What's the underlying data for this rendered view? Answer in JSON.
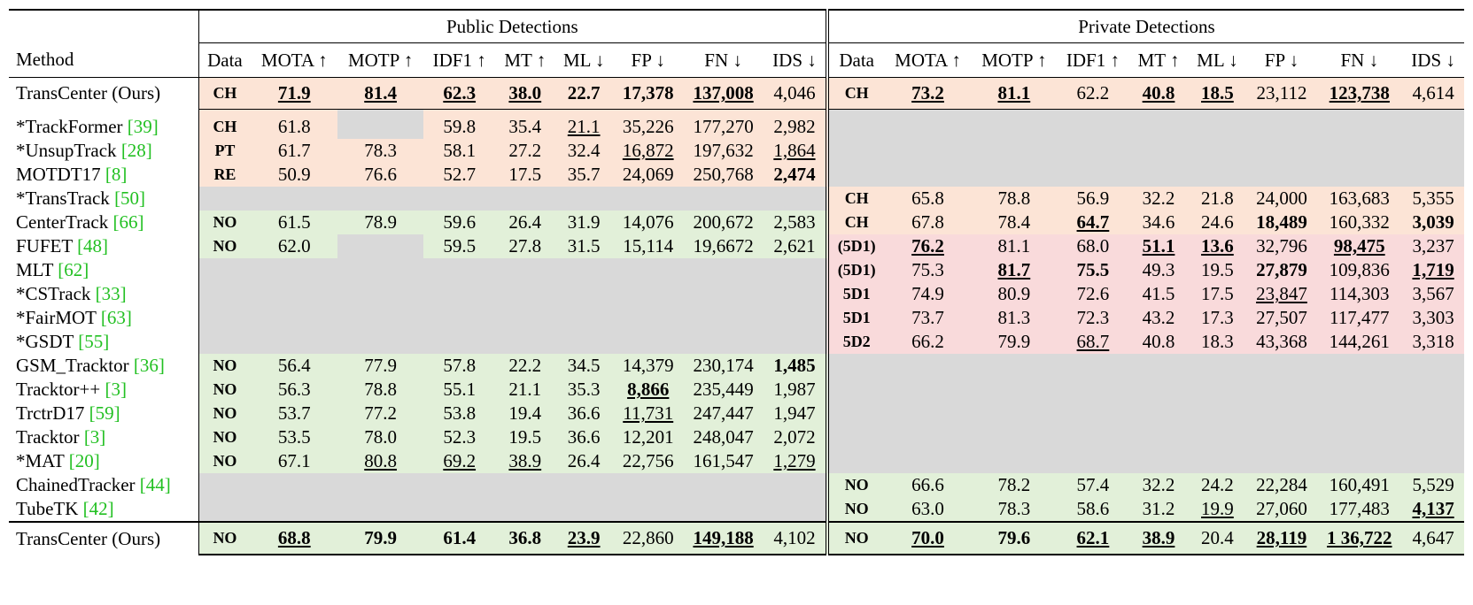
{
  "header": {
    "groups": [
      "Public Detections",
      "Private Detections"
    ],
    "method": "Method",
    "columns": [
      "Data",
      "MOTA ↑",
      "MOTP ↑",
      "IDF1 ↑",
      "MT ↑",
      "ML ↓",
      "FP ↓",
      "FN ↓",
      "IDS ↓"
    ]
  },
  "sections": [
    [
      {
        "method": "TransCenter (Ours)",
        "ref": null,
        "public": {
          "fill": "#fce4d6",
          "cells": [
            "CH",
            {
              "text": "71.9",
              "bold": true,
              "underline": true
            },
            {
              "text": "81.4",
              "bold": true,
              "underline": true
            },
            {
              "text": "62.3",
              "bold": true,
              "underline": true
            },
            {
              "text": "38.0",
              "bold": true,
              "underline": true
            },
            {
              "text": "22.7",
              "bold": true
            },
            {
              "text": "17,378",
              "bold": true
            },
            {
              "text": "137,008",
              "bold": true,
              "underline": true
            },
            "4,046"
          ]
        },
        "private": {
          "fill": "#fce4d6",
          "cells": [
            "CH",
            {
              "text": "73.2",
              "bold": true,
              "underline": true
            },
            {
              "text": "81.1",
              "bold": true,
              "underline": true
            },
            "62.2",
            {
              "text": "40.8",
              "bold": true,
              "underline": true
            },
            {
              "text": "18.5",
              "bold": true,
              "underline": true
            },
            "23,112",
            {
              "text": "123,738",
              "bold": true,
              "underline": true
            },
            "4,614"
          ]
        }
      }
    ],
    [
      {
        "method": "*TrackFormer",
        "ref": "[39]",
        "public": {
          "fill": "#fce4d6",
          "cells": [
            "CH",
            "61.8",
            null,
            "59.8",
            "35.4",
            {
              "text": "21.1",
              "underline": true
            },
            "35,226",
            "177,270",
            "2,982"
          ]
        },
        "private": null
      },
      {
        "method": "*UnsupTrack",
        "ref": "[28]",
        "public": {
          "fill": "#fce4d6",
          "cells": [
            "PT",
            "61.7",
            "78.3",
            "58.1",
            "27.2",
            "32.4",
            {
              "text": "16,872",
              "underline": true
            },
            "197,632",
            {
              "text": "1,864",
              "underline": true
            }
          ]
        },
        "private": null
      },
      {
        "method": "MOTDT17",
        "ref": "[8]",
        "public": {
          "fill": "#fce4d6",
          "cells": [
            "RE",
            "50.9",
            "76.6",
            "52.7",
            "17.5",
            "35.7",
            "24,069",
            "250,768",
            {
              "text": "2,474",
              "bold": true
            }
          ]
        },
        "private": null
      },
      {
        "method": "*TransTrack",
        "ref": "[50]",
        "public": null,
        "private": {
          "fill": "#fce4d6",
          "cells": [
            "CH",
            "65.8",
            "78.8",
            "56.9",
            "32.2",
            "21.8",
            "24,000",
            "163,683",
            "5,355"
          ]
        }
      },
      {
        "method": "CenterTrack",
        "ref": "[66]",
        "public": {
          "fill": "#e2f0d9",
          "cells": [
            "NO",
            "61.5",
            "78.9",
            "59.6",
            "26.4",
            "31.9",
            "14,076",
            "200,672",
            "2,583"
          ]
        },
        "private": {
          "fill": "#fce4d6",
          "cells": [
            "CH",
            "67.8",
            "78.4",
            {
              "text": "64.7",
              "bold": true,
              "underline": true
            },
            "34.6",
            "24.6",
            {
              "text": "18,489",
              "bold": true
            },
            "160,332",
            {
              "text": "3,039",
              "bold": true
            }
          ]
        }
      },
      {
        "method": "FUFET",
        "ref": "[48]",
        "public": {
          "fill": "#e2f0d9",
          "cells": [
            "NO",
            "62.0",
            null,
            "59.5",
            "27.8",
            "31.5",
            "15,114",
            "19,6672",
            "2,621"
          ]
        },
        "private": {
          "fill": "#f9dadb",
          "cells": [
            "(5D1)",
            {
              "text": "76.2",
              "bold": true,
              "underline": true
            },
            "81.1",
            "68.0",
            {
              "text": "51.1",
              "bold": true,
              "underline": true
            },
            {
              "text": "13.6",
              "bold": true,
              "underline": true
            },
            "32,796",
            {
              "text": "98,475",
              "bold": true,
              "underline": true
            },
            "3,237"
          ]
        }
      },
      {
        "method": "MLT",
        "ref": "[62]",
        "public": null,
        "private": {
          "fill": "#f9dadb",
          "cells": [
            "(5D1)",
            "75.3",
            {
              "text": "81.7",
              "bold": true,
              "underline": true
            },
            {
              "text": "75.5",
              "bold": true
            },
            "49.3",
            "19.5",
            {
              "text": "27,879",
              "bold": true
            },
            "109,836",
            {
              "text": "1,719",
              "bold": true,
              "underline": true
            }
          ]
        }
      },
      {
        "method": "*CSTrack",
        "ref": "[33]",
        "public": null,
        "private": {
          "fill": "#f9dadb",
          "cells": [
            "5D1",
            "74.9",
            "80.9",
            "72.6",
            "41.5",
            "17.5",
            {
              "text": "23,847",
              "underline": true
            },
            "114,303",
            "3,567"
          ]
        }
      },
      {
        "method": "*FairMOT",
        "ref": "[63]",
        "public": null,
        "private": {
          "fill": "#f9dadb",
          "cells": [
            "5D1",
            "73.7",
            "81.3",
            "72.3",
            "43.2",
            "17.3",
            "27,507",
            "117,477",
            "3,303"
          ]
        }
      },
      {
        "method": "*GSDT",
        "ref": "[55]",
        "public": null,
        "private": {
          "fill": "#f9dadb",
          "cells": [
            "5D2",
            "66.2",
            "79.9",
            {
              "text": "68.7",
              "underline": true
            },
            "40.8",
            "18.3",
            "43,368",
            "144,261",
            "3,318"
          ]
        }
      },
      {
        "method": "GSM_Tracktor",
        "ref": "[36]",
        "public": {
          "fill": "#e2f0d9",
          "cells": [
            "NO",
            "56.4",
            "77.9",
            "57.8",
            "22.2",
            "34.5",
            "14,379",
            "230,174",
            {
              "text": "1,485",
              "bold": true
            }
          ]
        },
        "private": null
      },
      {
        "method": "Tracktor++",
        "ref": "[3]",
        "public": {
          "fill": "#e2f0d9",
          "cells": [
            "NO",
            "56.3",
            "78.8",
            "55.1",
            "21.1",
            "35.3",
            {
              "text": "8,866",
              "bold": true,
              "underline": true
            },
            "235,449",
            "1,987"
          ]
        },
        "private": null
      },
      {
        "method": "TrctrD17",
        "ref": "[59]",
        "public": {
          "fill": "#e2f0d9",
          "cells": [
            "NO",
            "53.7",
            "77.2",
            "53.8",
            "19.4",
            "36.6",
            {
              "text": "11,731",
              "underline": true
            },
            "247,447",
            "1,947"
          ]
        },
        "private": null
      },
      {
        "method": "Tracktor",
        "ref": "[3]",
        "public": {
          "fill": "#e2f0d9",
          "cells": [
            "NO",
            "53.5",
            "78.0",
            "52.3",
            "19.5",
            "36.6",
            "12,201",
            "248,047",
            "2,072"
          ]
        },
        "private": null
      },
      {
        "method": "*MAT",
        "ref": "[20]",
        "public": {
          "fill": "#e2f0d9",
          "cells": [
            "NO",
            "67.1",
            {
              "text": "80.8",
              "underline": true
            },
            {
              "text": "69.2",
              "underline": true
            },
            {
              "text": "38.9",
              "underline": true
            },
            "26.4",
            "22,756",
            "161,547",
            {
              "text": "1,279",
              "underline": true
            }
          ]
        },
        "private": null
      },
      {
        "method": "ChainedTracker",
        "ref": "[44]",
        "public": null,
        "private": {
          "fill": "#e2f0d9",
          "cells": [
            "NO",
            "66.6",
            "78.2",
            "57.4",
            "32.2",
            "24.2",
            "22,284",
            "160,491",
            "5,529"
          ]
        }
      },
      {
        "method": "TubeTK",
        "ref": "[42]",
        "public": null,
        "private": {
          "fill": "#e2f0d9",
          "cells": [
            "NO",
            "63.0",
            "78.3",
            "58.6",
            "31.2",
            {
              "text": "19.9",
              "underline": true
            },
            "27,060",
            "177,483",
            {
              "text": "4,137",
              "bold": true,
              "underline": true
            }
          ]
        }
      }
    ],
    [
      {
        "method": "TransCenter (Ours)",
        "ref": null,
        "public": {
          "fill": "#e2f0d9",
          "cells": [
            "NO",
            {
              "text": "68.8",
              "bold": true,
              "underline": true
            },
            {
              "text": "79.9",
              "bold": true
            },
            {
              "text": "61.4",
              "bold": true
            },
            {
              "text": "36.8",
              "bold": true
            },
            {
              "text": "23.9",
              "bold": true,
              "underline": true
            },
            "22,860",
            {
              "text": "149,188",
              "bold": true,
              "underline": true
            },
            "4,102"
          ]
        },
        "private": {
          "fill": "#e2f0d9",
          "cells": [
            "NO",
            {
              "text": "70.0",
              "bold": true,
              "underline": true
            },
            {
              "text": "79.6",
              "bold": true
            },
            {
              "text": "62.1",
              "bold": true,
              "underline": true
            },
            {
              "text": "38.9",
              "bold": true,
              "underline": true
            },
            "20.4",
            {
              "text": "28,119",
              "bold": true,
              "underline": true
            },
            {
              "text": "1 36,722",
              "bold": true,
              "underline": true
            },
            "4,647"
          ]
        }
      }
    ]
  ],
  "empty_fill": "#d9d9d9",
  "ref_color": "#22c022"
}
